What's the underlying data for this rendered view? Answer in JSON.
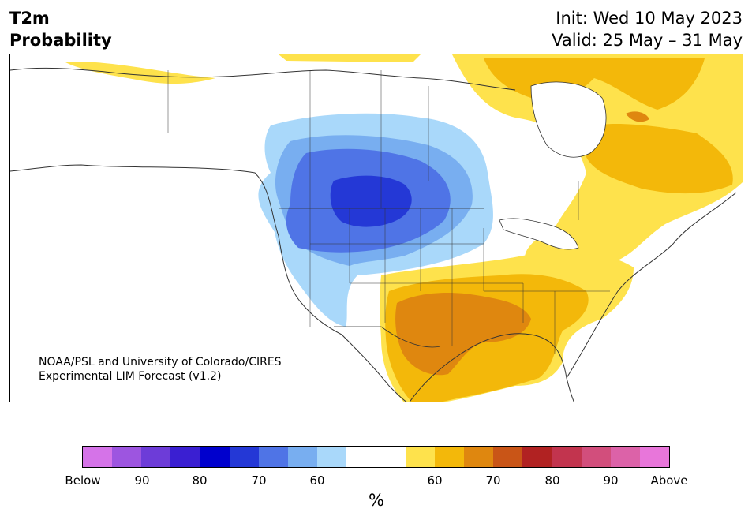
{
  "header": {
    "title_line1": "T2m",
    "title_line2": "Probability",
    "init": "Init: Wed 10 May 2023",
    "valid": "Valid: 25 May – 31 May"
  },
  "credit": {
    "line1": "NOAA/PSL and University of Colorado/CIRES",
    "line2": "Experimental LIM Forecast (v1.2)"
  },
  "colorbar": {
    "colors": [
      "#d573e8",
      "#9d55e0",
      "#6d3cd8",
      "#3a1fd2",
      "#0000cd",
      "#2438d6",
      "#4f74e6",
      "#78aef0",
      "#a9d8fa",
      "#ffffff",
      "#ffffff",
      "#fee24c",
      "#f3b80a",
      "#df870f",
      "#c95517",
      "#b12222",
      "#c2344e",
      "#d24e7c",
      "#dc62a8",
      "#e876da"
    ],
    "tick_labels": [
      "Below",
      "90",
      "80",
      "70",
      "60",
      "60",
      "70",
      "80",
      "90",
      "Above"
    ],
    "unit": "%"
  }
}
